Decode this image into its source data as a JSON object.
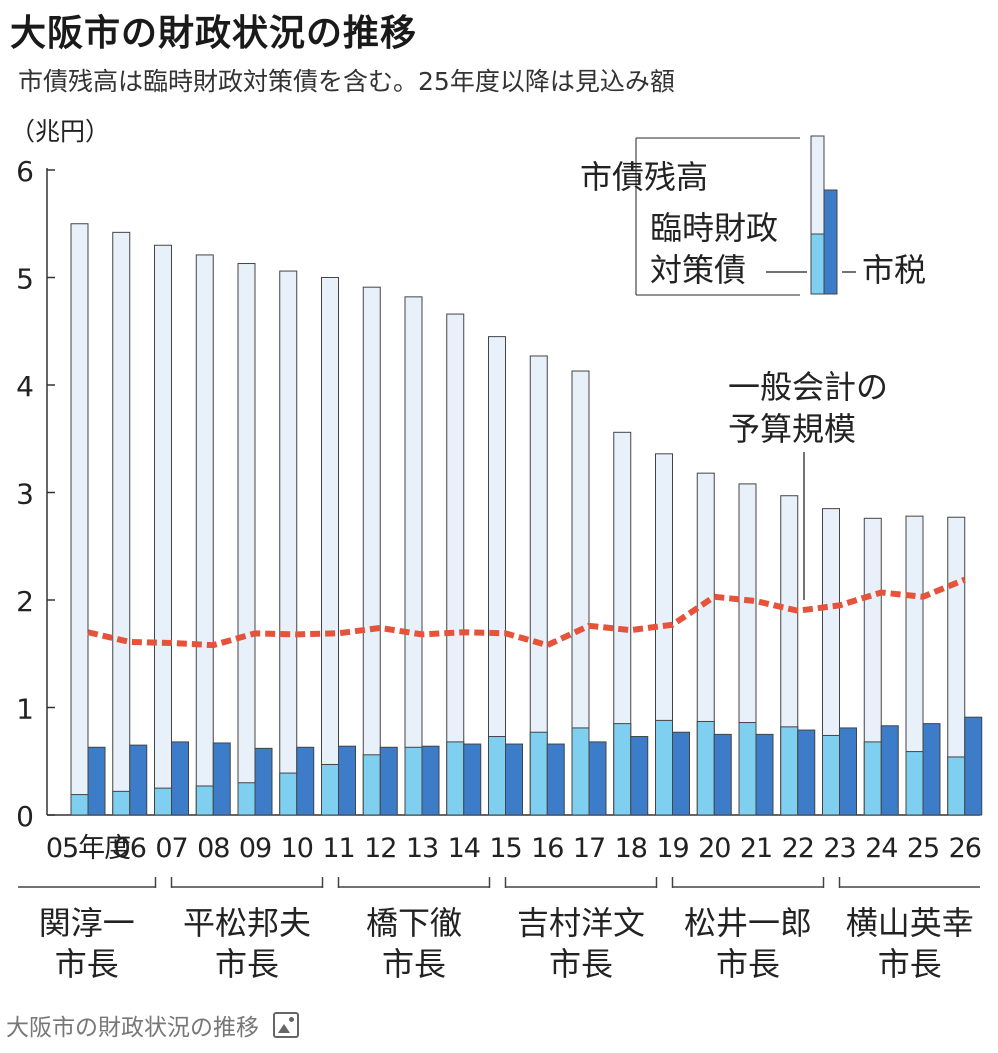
{
  "title": "大阪市の財政状況の推移",
  "subtitle": "市債残高は臨時財政対策債を含む。25年度以降は見込み額",
  "caption": "大阪市の財政状況の推移",
  "colors": {
    "debt": "#e8f0fa",
    "extra": "#7fcff0",
    "tax": "#3d7cc9",
    "budget": "#e6533b",
    "outline": "#444444"
  },
  "chart_data": {
    "type": "bar",
    "unit_label": "（兆円）",
    "ylim": [
      0,
      6
    ],
    "y_ticks": [
      "0",
      "1",
      "2",
      "3",
      "4",
      "5",
      "6"
    ],
    "categories": [
      "05年度",
      "06",
      "07",
      "08",
      "09",
      "10",
      "11",
      "12",
      "13",
      "14",
      "15",
      "16",
      "17",
      "18",
      "19",
      "20",
      "21",
      "22",
      "23",
      "24",
      "25",
      "26"
    ],
    "series": [
      {
        "name": "市債残高",
        "values": [
          5.5,
          5.42,
          5.3,
          5.21,
          5.13,
          5.06,
          5.0,
          4.91,
          4.82,
          4.66,
          4.45,
          4.27,
          4.13,
          3.56,
          3.36,
          3.18,
          3.08,
          2.97,
          2.85,
          2.76,
          2.78,
          2.77
        ]
      },
      {
        "name": "臨時財政対策債",
        "values": [
          0.19,
          0.22,
          0.25,
          0.27,
          0.3,
          0.39,
          0.47,
          0.56,
          0.63,
          0.68,
          0.73,
          0.77,
          0.81,
          0.85,
          0.88,
          0.87,
          0.86,
          0.82,
          0.74,
          0.68,
          0.59,
          0.54
        ]
      },
      {
        "name": "市税",
        "values": [
          0.63,
          0.65,
          0.68,
          0.67,
          0.62,
          0.63,
          0.64,
          0.63,
          0.64,
          0.66,
          0.66,
          0.66,
          0.68,
          0.73,
          0.77,
          0.75,
          0.75,
          0.79,
          0.81,
          0.83,
          0.85,
          0.91
        ]
      },
      {
        "name": "一般会計の予算規模",
        "values": [
          1.7,
          1.61,
          1.6,
          1.58,
          1.69,
          1.68,
          1.69,
          1.74,
          1.68,
          1.7,
          1.69,
          1.58,
          1.76,
          1.72,
          1.77,
          2.03,
          1.99,
          1.9,
          1.95,
          2.07,
          2.03,
          2.19
        ]
      }
    ],
    "legend": {
      "debt": "市債残高",
      "extra_line1": "臨時財政",
      "extra_line2": "対策債",
      "tax": "市税",
      "budget_line1": "一般会計の",
      "budget_line2": "予算規模"
    },
    "mayors": [
      {
        "line1": "関淳一",
        "line2": "市長",
        "from": 0,
        "to": 2
      },
      {
        "line1": "平松邦夫",
        "line2": "市長",
        "from": 2,
        "to": 6
      },
      {
        "line1": "橋下徹",
        "line2": "市長",
        "from": 6,
        "to": 10
      },
      {
        "line1": "吉村洋文",
        "line2": "市長",
        "from": 10,
        "to": 14
      },
      {
        "line1": "松井一郎",
        "line2": "市長",
        "from": 14,
        "to": 18
      },
      {
        "line1": "横山英幸",
        "line2": "市長",
        "from": 18,
        "to": 21
      }
    ]
  }
}
